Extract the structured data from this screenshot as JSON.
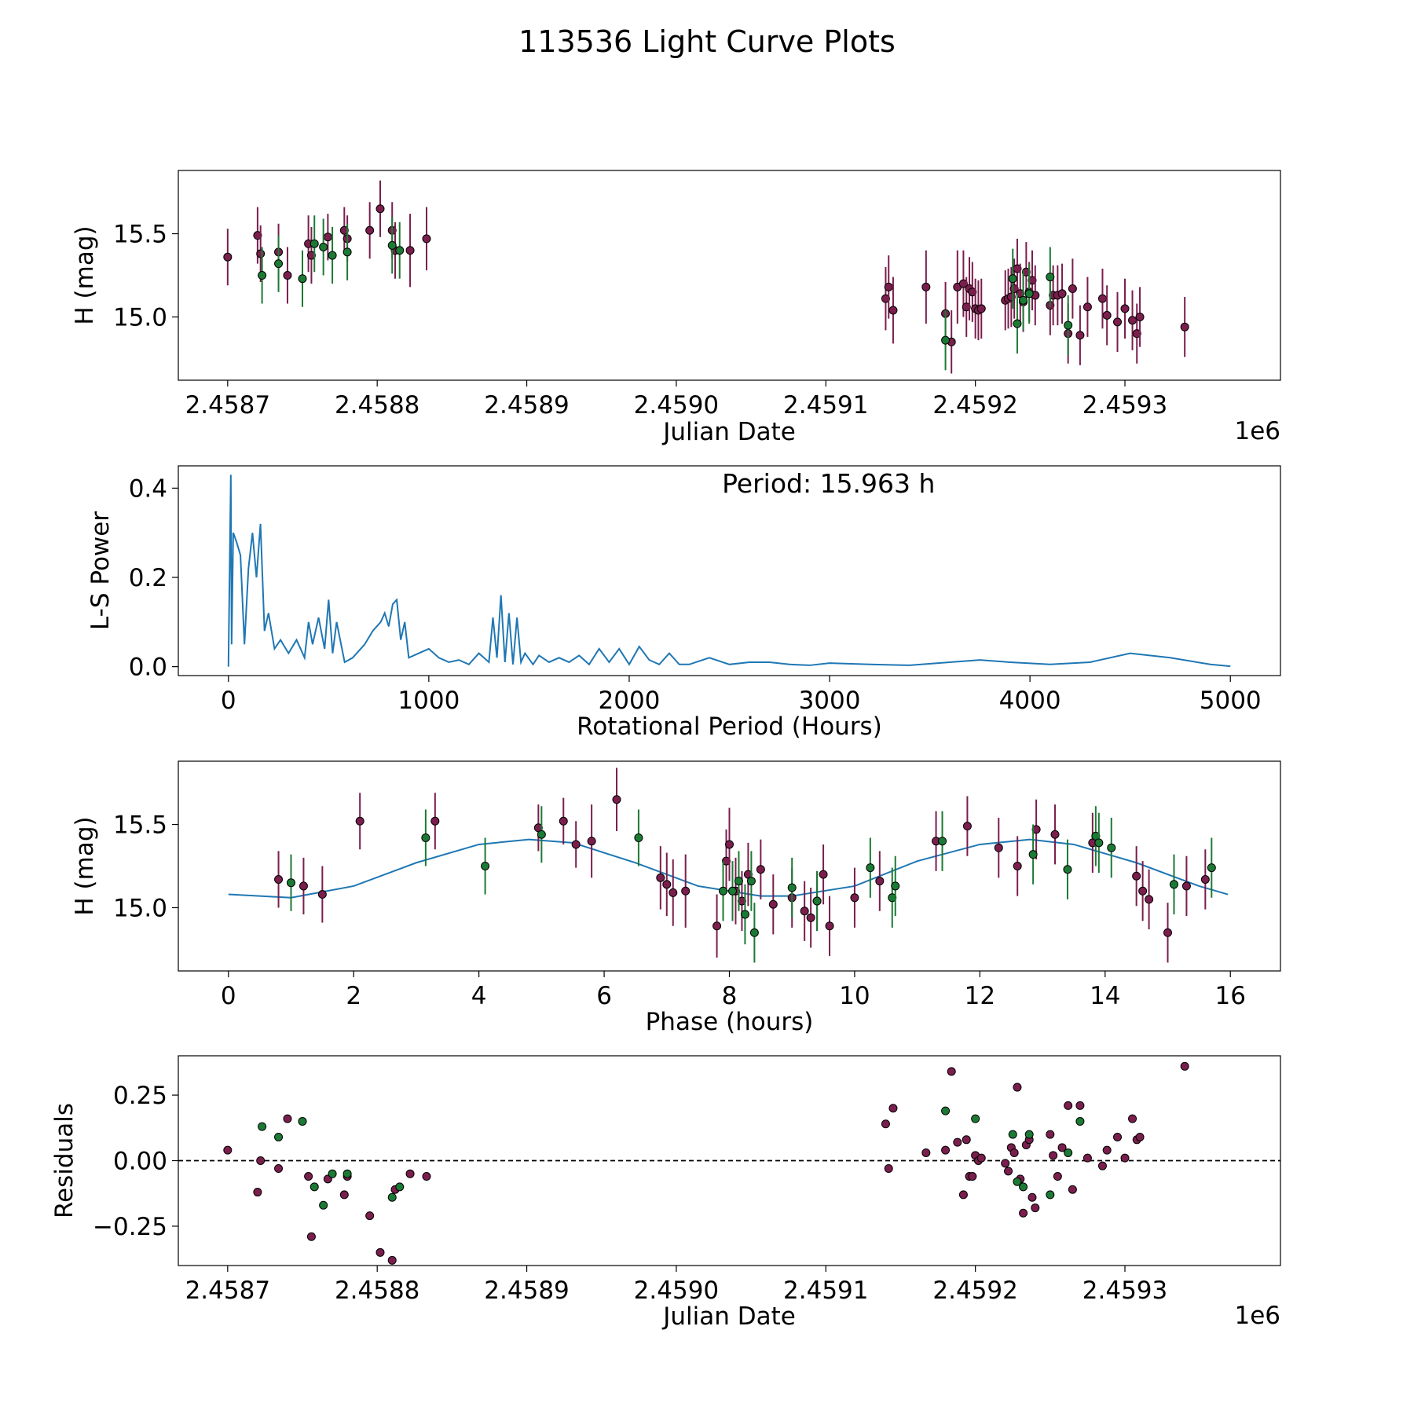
{
  "title": "113536 Light Curve Plots",
  "colors": {
    "band_a": "#7a1e4d",
    "band_b": "#1b7a34",
    "model": "#1f77b4",
    "frame": "#000000"
  },
  "chart_data": [
    {
      "id": "lightcurve",
      "type": "scatter",
      "xlabel": "Julian Date",
      "ylabel": "H (mag)",
      "offset_text": "1e6",
      "xlim": [
        2458667,
        2459404
      ],
      "ylim": [
        14.62,
        15.88
      ],
      "xticks": [
        2458700,
        2458800,
        2458900,
        2459000,
        2459100,
        2459200,
        2459300
      ],
      "xtick_labels": [
        "2.4587",
        "2.4588",
        "2.4589",
        "2.4590",
        "2.4591",
        "2.4592",
        "2.4593"
      ],
      "yticks": [
        15.0,
        15.5
      ],
      "ytick_labels": [
        "15.0",
        "15.5"
      ],
      "error_bars": true,
      "series": [
        {
          "color": "#7a1e4d",
          "x": [
            2458700,
            2458720,
            2458722,
            2458734,
            2458740,
            2458754,
            2458756,
            2458767,
            2458778,
            2458780,
            2458795,
            2458802,
            2458810,
            2458812,
            2458822,
            2458833,
            2459140,
            2459142,
            2459145,
            2459167,
            2459180,
            2459184,
            2459188,
            2459192,
            2459194,
            2459196,
            2459198,
            2459200,
            2459202,
            2459204,
            2459220,
            2459222,
            2459224,
            2459226,
            2459228,
            2459230,
            2459232,
            2459234,
            2459236,
            2459238,
            2459240,
            2459250,
            2459252,
            2459255,
            2459258,
            2459262,
            2459265,
            2459270,
            2459275,
            2459285,
            2459288,
            2459295,
            2459300,
            2459305,
            2459308,
            2459310,
            2459340
          ],
          "y": [
            15.36,
            15.49,
            15.38,
            15.39,
            15.25,
            15.44,
            15.37,
            15.48,
            15.52,
            15.47,
            15.52,
            15.65,
            15.52,
            15.4,
            15.4,
            15.47,
            15.11,
            15.18,
            15.04,
            15.18,
            15.02,
            14.85,
            15.18,
            15.2,
            15.06,
            15.17,
            15.15,
            15.05,
            15.04,
            15.05,
            15.1,
            15.11,
            15.12,
            15.17,
            15.29,
            15.14,
            15.09,
            15.27,
            15.15,
            15.22,
            15.13,
            15.07,
            15.13,
            15.13,
            15.14,
            14.9,
            15.17,
            14.89,
            15.06,
            15.11,
            15.01,
            14.97,
            15.05,
            14.98,
            14.9,
            15.0,
            14.94
          ],
          "err": [
            0.17,
            0.17,
            0.17,
            0.17,
            0.17,
            0.17,
            0.17,
            0.14,
            0.14,
            0.14,
            0.17,
            0.17,
            0.17,
            0.17,
            0.22,
            0.19,
            0.19,
            0.19,
            0.2,
            0.22,
            0.19,
            0.19,
            0.22,
            0.2,
            0.18,
            0.19,
            0.18,
            0.18,
            0.18,
            0.18,
            0.18,
            0.18,
            0.18,
            0.18,
            0.18,
            0.18,
            0.18,
            0.18,
            0.18,
            0.18,
            0.18,
            0.18,
            0.18,
            0.18,
            0.18,
            0.18,
            0.18,
            0.18,
            0.18,
            0.18,
            0.18,
            0.18,
            0.18,
            0.18,
            0.18,
            0.18,
            0.18
          ]
        },
        {
          "color": "#1b7a34",
          "x": [
            2458723,
            2458734,
            2458750,
            2458758,
            2458764,
            2458770,
            2458780,
            2458810,
            2458815,
            2459180,
            2459225,
            2459228,
            2459232,
            2459236,
            2459250,
            2459262
          ],
          "y": [
            15.25,
            15.32,
            15.23,
            15.44,
            15.42,
            15.37,
            15.39,
            15.43,
            15.4,
            14.86,
            15.23,
            14.96,
            15.1,
            15.14,
            15.24,
            14.95
          ],
          "err": [
            0.17,
            0.17,
            0.17,
            0.17,
            0.17,
            0.17,
            0.17,
            0.17,
            0.17,
            0.18,
            0.18,
            0.18,
            0.18,
            0.18,
            0.18,
            0.18
          ]
        }
      ]
    },
    {
      "id": "periodogram",
      "type": "line",
      "xlabel": "Rotational Period (Hours)",
      "ylabel": "L-S Power",
      "annotation": "Period: 15.963 h",
      "xlim": [
        -250,
        5250
      ],
      "ylim": [
        -0.02,
        0.45
      ],
      "xticks": [
        0,
        1000,
        2000,
        3000,
        4000,
        5000
      ],
      "xtick_labels": [
        "0",
        "1000",
        "2000",
        "3000",
        "4000",
        "5000"
      ],
      "yticks": [
        0.0,
        0.2,
        0.4
      ],
      "ytick_labels": [
        "0.0",
        "0.2",
        "0.4"
      ],
      "series": [
        {
          "color": "#1f77b4",
          "x": [
            0,
            12,
            16,
            24,
            40,
            60,
            80,
            100,
            120,
            140,
            160,
            180,
            200,
            230,
            260,
            300,
            340,
            380,
            400,
            420,
            450,
            480,
            500,
            520,
            540,
            580,
            620,
            680,
            720,
            760,
            780,
            800,
            820,
            840,
            860,
            880,
            900,
            950,
            1000,
            1050,
            1100,
            1150,
            1200,
            1250,
            1300,
            1320,
            1340,
            1360,
            1380,
            1400,
            1420,
            1440,
            1460,
            1480,
            1520,
            1550,
            1600,
            1650,
            1700,
            1750,
            1800,
            1850,
            1900,
            1950,
            2000,
            2050,
            2100,
            2150,
            2200,
            2250,
            2300,
            2400,
            2500,
            2600,
            2700,
            2800,
            2900,
            3000,
            3200,
            3400,
            3600,
            3750,
            3900,
            4100,
            4300,
            4500,
            4700,
            4900,
            5000
          ],
          "y": [
            0.0,
            0.43,
            0.05,
            0.3,
            0.28,
            0.25,
            0.05,
            0.22,
            0.3,
            0.2,
            0.32,
            0.08,
            0.12,
            0.04,
            0.06,
            0.03,
            0.06,
            0.02,
            0.1,
            0.05,
            0.11,
            0.04,
            0.15,
            0.03,
            0.1,
            0.01,
            0.02,
            0.05,
            0.08,
            0.1,
            0.12,
            0.09,
            0.14,
            0.15,
            0.06,
            0.1,
            0.02,
            0.03,
            0.04,
            0.02,
            0.01,
            0.015,
            0.005,
            0.03,
            0.01,
            0.11,
            0.02,
            0.16,
            0.01,
            0.12,
            0.005,
            0.11,
            0.01,
            0.03,
            0.005,
            0.025,
            0.01,
            0.02,
            0.01,
            0.025,
            0.005,
            0.04,
            0.01,
            0.04,
            0.005,
            0.045,
            0.015,
            0.005,
            0.03,
            0.005,
            0.005,
            0.02,
            0.005,
            0.01,
            0.01,
            0.005,
            0.003,
            0.008,
            0.005,
            0.003,
            0.01,
            0.015,
            0.01,
            0.005,
            0.01,
            0.03,
            0.02,
            0.005,
            0.001
          ]
        }
      ]
    },
    {
      "id": "phased",
      "type": "scatter",
      "xlabel": "Phase (hours)",
      "ylabel": "H (mag)",
      "xlim": [
        -0.8,
        16.8
      ],
      "ylim": [
        14.62,
        15.88
      ],
      "xticks": [
        0,
        2,
        4,
        6,
        8,
        10,
        12,
        14,
        16
      ],
      "xtick_labels": [
        "0",
        "2",
        "4",
        "6",
        "8",
        "10",
        "12",
        "14",
        "16"
      ],
      "yticks": [
        15.0,
        15.5
      ],
      "ytick_labels": [
        "15.0",
        "15.5"
      ],
      "error_bars": true,
      "model": {
        "color": "#1f77b4",
        "x": [
          0,
          1,
          2,
          3,
          4,
          4.8,
          5.5,
          6.5,
          7.5,
          8.5,
          9.0,
          10,
          11,
          12,
          12.8,
          13.5,
          14.5,
          15.5,
          15.96
        ],
        "y": [
          15.08,
          15.06,
          15.13,
          15.27,
          15.38,
          15.41,
          15.39,
          15.27,
          15.13,
          15.07,
          15.07,
          15.13,
          15.28,
          15.38,
          15.41,
          15.38,
          15.27,
          15.13,
          15.08
        ]
      },
      "series": [
        {
          "color": "#7a1e4d",
          "x": [
            0.8,
            1.2,
            1.5,
            2.1,
            3.3,
            4.95,
            5.35,
            5.55,
            5.8,
            6.2,
            6.9,
            7.0,
            7.1,
            7.3,
            7.8,
            7.95,
            8.0,
            8.1,
            8.2,
            8.3,
            8.5,
            8.7,
            9.0,
            9.2,
            9.3,
            9.4,
            9.5,
            9.6,
            10.0,
            10.4,
            11.3,
            11.8,
            12.3,
            12.6,
            12.9,
            13.2,
            13.8,
            14.5,
            14.6,
            14.7,
            15.0,
            15.3,
            15.6
          ],
          "y": [
            15.17,
            15.13,
            15.08,
            15.52,
            15.52,
            15.48,
            15.52,
            15.38,
            15.4,
            15.65,
            15.18,
            15.14,
            15.09,
            15.1,
            14.89,
            15.28,
            15.38,
            15.1,
            15.04,
            15.2,
            15.23,
            15.02,
            15.06,
            14.98,
            14.94,
            15.04,
            15.2,
            14.89,
            15.06,
            15.16,
            15.4,
            15.49,
            15.36,
            15.25,
            15.47,
            15.44,
            15.39,
            15.19,
            15.1,
            15.05,
            14.85,
            15.13,
            15.17
          ],
          "err": [
            0.17,
            0.17,
            0.17,
            0.17,
            0.17,
            0.14,
            0.14,
            0.14,
            0.22,
            0.19,
            0.19,
            0.19,
            0.2,
            0.22,
            0.19,
            0.19,
            0.22,
            0.2,
            0.18,
            0.19,
            0.18,
            0.18,
            0.18,
            0.18,
            0.18,
            0.18,
            0.18,
            0.18,
            0.18,
            0.18,
            0.18,
            0.18,
            0.18,
            0.18,
            0.18,
            0.18,
            0.18,
            0.18,
            0.18,
            0.18,
            0.18,
            0.18,
            0.18
          ]
        },
        {
          "color": "#1b7a34",
          "x": [
            1.0,
            3.15,
            4.1,
            5.0,
            6.55,
            7.9,
            8.05,
            8.15,
            8.25,
            8.35,
            8.4,
            9.0,
            9.4,
            10.25,
            10.6,
            10.65,
            11.4,
            12.85,
            13.4,
            13.85,
            13.9,
            14.1,
            15.1,
            15.7
          ],
          "y": [
            15.15,
            15.42,
            15.25,
            15.44,
            15.42,
            15.1,
            15.1,
            15.16,
            14.96,
            15.16,
            14.85,
            15.12,
            15.04,
            15.24,
            15.06,
            15.13,
            15.4,
            15.32,
            15.23,
            15.43,
            15.39,
            15.36,
            15.14,
            15.24
          ],
          "err": [
            0.17,
            0.17,
            0.17,
            0.17,
            0.17,
            0.18,
            0.18,
            0.18,
            0.18,
            0.18,
            0.18,
            0.18,
            0.18,
            0.18,
            0.18,
            0.18,
            0.18,
            0.18,
            0.18,
            0.18,
            0.18,
            0.18,
            0.18,
            0.18
          ]
        }
      ]
    },
    {
      "id": "residuals",
      "type": "scatter",
      "xlabel": "Julian Date",
      "ylabel": "Residuals",
      "offset_text": "1e6",
      "xlim": [
        2458667,
        2459404
      ],
      "ylim": [
        -0.4,
        0.4
      ],
      "xticks": [
        2458700,
        2458800,
        2458900,
        2459000,
        2459100,
        2459200,
        2459300
      ],
      "xtick_labels": [
        "2.4587",
        "2.4588",
        "2.4589",
        "2.4590",
        "2.4591",
        "2.4592",
        "2.4593"
      ],
      "yticks": [
        -0.25,
        0.0,
        0.25
      ],
      "ytick_labels": [
        "−0.25",
        "0.00",
        "0.25"
      ],
      "zero_line": true,
      "series": [
        {
          "color": "#7a1e4d",
          "x": [
            2458700,
            2458720,
            2458722,
            2458734,
            2458740,
            2458754,
            2458756,
            2458767,
            2458778,
            2458780,
            2458795,
            2458802,
            2458810,
            2458812,
            2458822,
            2458833,
            2459140,
            2459142,
            2459145,
            2459167,
            2459180,
            2459184,
            2459188,
            2459192,
            2459194,
            2459196,
            2459198,
            2459200,
            2459202,
            2459204,
            2459220,
            2459222,
            2459224,
            2459226,
            2459228,
            2459230,
            2459232,
            2459234,
            2459236,
            2459238,
            2459240,
            2459250,
            2459252,
            2459255,
            2459258,
            2459262,
            2459265,
            2459270,
            2459275,
            2459285,
            2459288,
            2459295,
            2459300,
            2459305,
            2459308,
            2459310,
            2459340
          ],
          "y": [
            0.04,
            -0.12,
            0.0,
            -0.03,
            0.16,
            -0.06,
            -0.29,
            -0.07,
            -0.13,
            -0.06,
            -0.21,
            -0.35,
            -0.38,
            -0.11,
            -0.05,
            -0.06,
            0.14,
            -0.03,
            0.2,
            0.03,
            0.04,
            0.34,
            0.07,
            -0.13,
            0.08,
            -0.06,
            -0.06,
            0.02,
            0.0,
            0.01,
            -0.01,
            -0.04,
            0.05,
            0.03,
            0.28,
            -0.07,
            -0.2,
            0.06,
            0.08,
            -0.14,
            -0.18,
            0.1,
            0.02,
            -0.06,
            0.05,
            0.21,
            -0.11,
            0.21,
            0.01,
            -0.02,
            0.04,
            0.09,
            0.01,
            0.16,
            0.08,
            0.09,
            0.36
          ]
        },
        {
          "color": "#1b7a34",
          "x": [
            2458723,
            2458734,
            2458750,
            2458758,
            2458764,
            2458770,
            2458780,
            2458810,
            2458815,
            2459180,
            2459200,
            2459225,
            2459228,
            2459232,
            2459236,
            2459250,
            2459262,
            2459270
          ],
          "y": [
            0.13,
            0.09,
            0.15,
            -0.1,
            -0.17,
            -0.05,
            -0.05,
            -0.14,
            -0.1,
            0.19,
            0.16,
            0.1,
            -0.08,
            -0.1,
            0.1,
            -0.13,
            0.03,
            0.15
          ]
        }
      ]
    }
  ]
}
